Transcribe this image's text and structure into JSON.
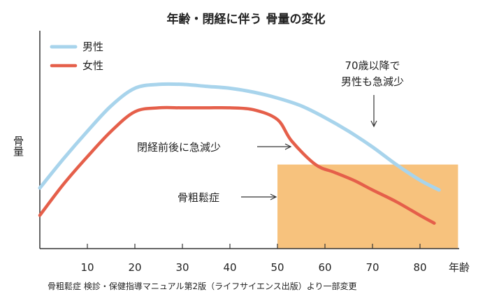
{
  "chart_data": {
    "type": "line",
    "title": "年齢・閉経に伴う 骨量の変化",
    "xlabel": "年齢",
    "ylabel": "骨量",
    "xlim": [
      0,
      88
    ],
    "ylim": [
      0,
      100
    ],
    "x_ticks": [
      "10",
      "20",
      "30",
      "40",
      "50",
      "60",
      "70",
      "80"
    ],
    "x_tick_values": [
      10,
      20,
      30,
      40,
      50,
      60,
      70,
      80
    ],
    "grid": false,
    "legend_position": "top-left",
    "series": [
      {
        "name": "男性",
        "color": "#a8d4ec",
        "points": [
          [
            0,
            31
          ],
          [
            5,
            46
          ],
          [
            10,
            60
          ],
          [
            15,
            73
          ],
          [
            20,
            82
          ],
          [
            25,
            84
          ],
          [
            30,
            84
          ],
          [
            35,
            83
          ],
          [
            40,
            82
          ],
          [
            45,
            80
          ],
          [
            50,
            77
          ],
          [
            55,
            73
          ],
          [
            60,
            67
          ],
          [
            65,
            60
          ],
          [
            70,
            52
          ],
          [
            75,
            43
          ],
          [
            80,
            35
          ],
          [
            84,
            30
          ]
        ]
      },
      {
        "name": "女性",
        "color": "#e55f4a",
        "points": [
          [
            0,
            17
          ],
          [
            5,
            33
          ],
          [
            10,
            47
          ],
          [
            15,
            60
          ],
          [
            20,
            70
          ],
          [
            25,
            72
          ],
          [
            30,
            72
          ],
          [
            35,
            72
          ],
          [
            40,
            72
          ],
          [
            45,
            71
          ],
          [
            50,
            66
          ],
          [
            53,
            55
          ],
          [
            58,
            43
          ],
          [
            62,
            39
          ],
          [
            66,
            35
          ],
          [
            70,
            30
          ],
          [
            75,
            24
          ],
          [
            80,
            17
          ],
          [
            83,
            13
          ]
        ]
      }
    ],
    "region": {
      "label": "骨粗鬆症",
      "x_range": [
        50,
        88
      ],
      "y_range": [
        0,
        43
      ],
      "color": "#f7c27d"
    },
    "annotations": [
      {
        "id": "menopause",
        "text": "閉経前後に急減少"
      },
      {
        "id": "after70_line1",
        "text": "70歳以降で"
      },
      {
        "id": "after70_line2",
        "text": "男性も急減少"
      }
    ],
    "source": "骨粗鬆症 検診・保健指導マニュアル第2版（ライフサイエンス出版）より一部変更"
  }
}
